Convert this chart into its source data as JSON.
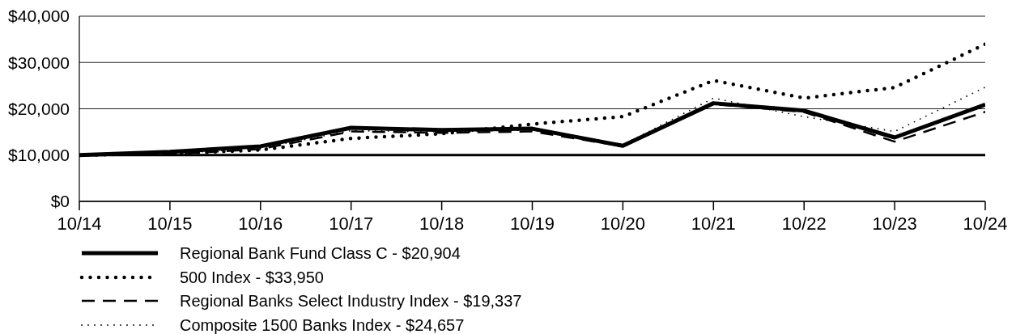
{
  "chart_data": {
    "type": "line",
    "categories": [
      "10/14",
      "10/15",
      "10/16",
      "10/17",
      "10/18",
      "10/19",
      "10/20",
      "10/21",
      "10/22",
      "10/23",
      "10/24"
    ],
    "series": [
      {
        "name": "Regional Bank Fund Class C - $20,904",
        "color": "#000000",
        "line_style": "solid",
        "values": [
          10000,
          10700,
          11900,
          15900,
          15400,
          15700,
          12000,
          21200,
          19600,
          13800,
          20904
        ]
      },
      {
        "name": "500 Index - $33,950",
        "color": "#000000",
        "line_style": "dotted",
        "values": [
          10000,
          10300,
          11100,
          13600,
          14600,
          16700,
          18300,
          26100,
          22300,
          24600,
          33950
        ]
      },
      {
        "name": "Regional Banks Select Industry Index - $19,337",
        "color": "#000000",
        "line_style": "dashed",
        "values": [
          10000,
          10200,
          11300,
          15100,
          14800,
          15100,
          11900,
          21000,
          19300,
          12900,
          19337
        ]
      },
      {
        "name": "Composite 1500 Banks Index - $24,657",
        "color": "#000000",
        "line_style": "dotted",
        "values": [
          10000,
          10300,
          11500,
          15300,
          15000,
          15400,
          12200,
          22300,
          18300,
          15100,
          24657
        ]
      }
    ],
    "ylim": [
      0,
      40000
    ],
    "yticks": [
      {
        "value": 0,
        "label": "$0"
      },
      {
        "value": 10000,
        "label": "$10,000"
      },
      {
        "value": 20000,
        "label": "$20,000"
      },
      {
        "value": 30000,
        "label": "$30,000"
      },
      {
        "value": 40000,
        "label": "$40,000"
      }
    ],
    "ref_lines": [
      {
        "axis": "y",
        "value": 10000,
        "color": "#000000"
      }
    ],
    "grid": "y",
    "legend": "bottom",
    "marker": "none"
  }
}
